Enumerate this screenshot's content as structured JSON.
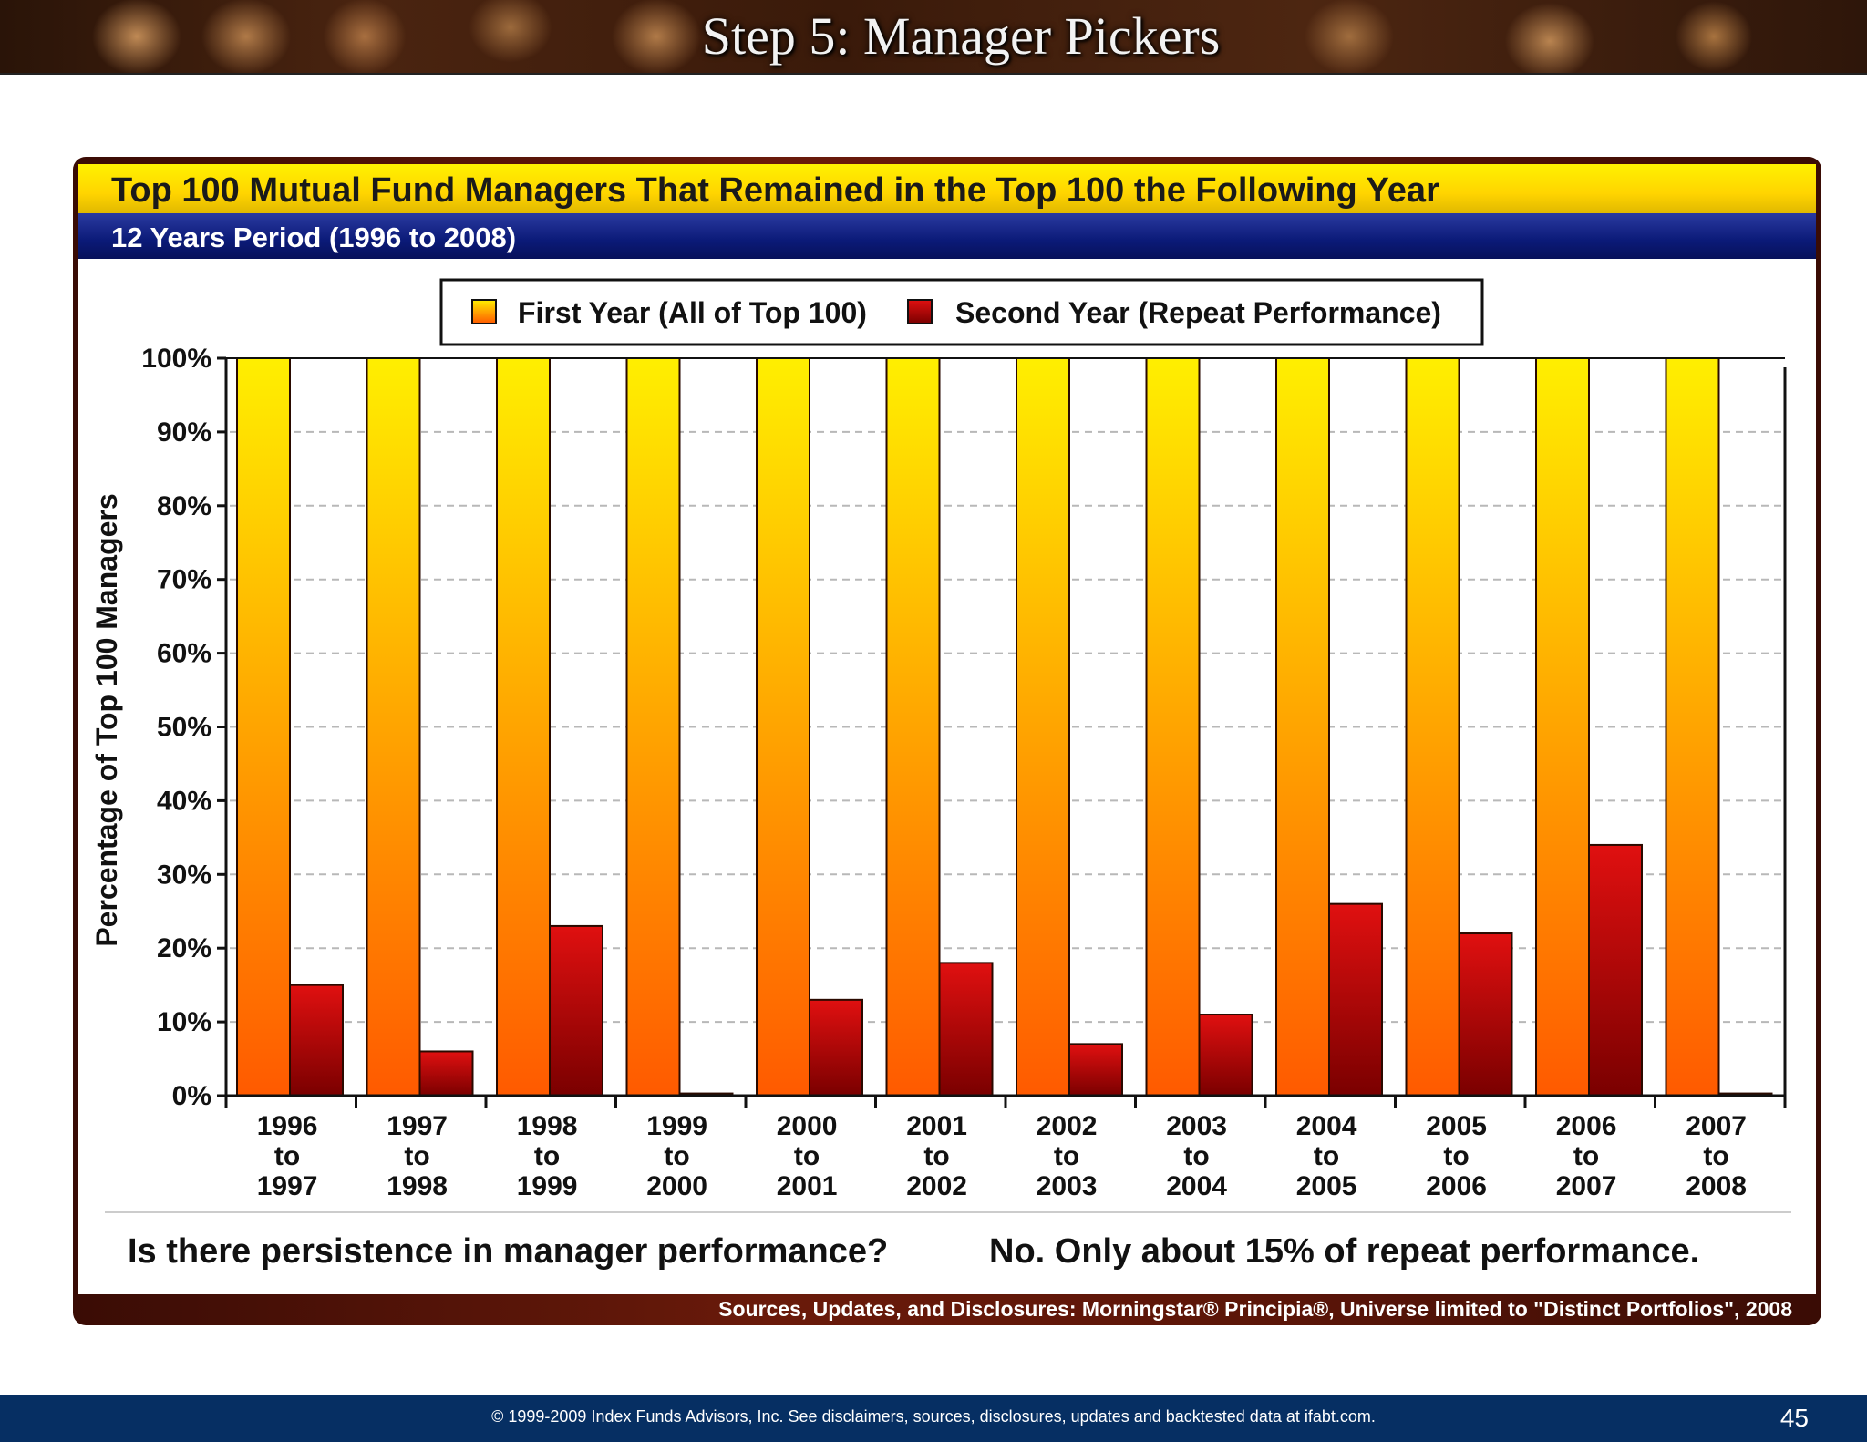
{
  "header": {
    "title": "Step 5: Manager Pickers"
  },
  "panel": {
    "title": "Top 100 Mutual Fund Managers That Remained in the Top 100 the Following Year",
    "subtitle": "12 Years Period  (1996 to 2008)",
    "source": "Sources, Updates, and Disclosures: Morningstar® Principia®, Universe limited to \"Distinct Portfolios\", 2008",
    "caption_question": "Is there persistence in manager performance?",
    "caption_answer": "No.  Only about 15% of repeat performance."
  },
  "colors": {
    "first_top": "#ffef00",
    "first_bottom": "#ff5a00",
    "second_top": "#e01010",
    "second_bottom": "#7a0000"
  },
  "chart_data": {
    "type": "bar",
    "title": "Top 100 Mutual Fund Managers That Remained in the Top 100 the Following Year",
    "ylabel": "Percentage of Top 100 Managers",
    "xlabel": "",
    "ylim": [
      0,
      100
    ],
    "yticks": [
      "0%",
      "10%",
      "20%",
      "30%",
      "40%",
      "50%",
      "60%",
      "70%",
      "80%",
      "90%",
      "100%"
    ],
    "grid": true,
    "legend_position": "top-center",
    "categories": [
      [
        "1996",
        "to",
        "1997"
      ],
      [
        "1997",
        "to",
        "1998"
      ],
      [
        "1998",
        "to",
        "1999"
      ],
      [
        "1999",
        "to",
        "2000"
      ],
      [
        "2000",
        "to",
        "2001"
      ],
      [
        "2001",
        "to",
        "2002"
      ],
      [
        "2002",
        "to",
        "2003"
      ],
      [
        "2003",
        "to",
        "2004"
      ],
      [
        "2004",
        "to",
        "2005"
      ],
      [
        "2005",
        "to",
        "2006"
      ],
      [
        "2006",
        "to",
        "2007"
      ],
      [
        "2007",
        "to",
        "2008"
      ]
    ],
    "series": [
      {
        "name": "First Year (All of Top 100)",
        "values": [
          100,
          100,
          100,
          100,
          100,
          100,
          100,
          100,
          100,
          100,
          100,
          100
        ]
      },
      {
        "name": "Second Year (Repeat Performance)",
        "values": [
          15,
          6,
          23,
          0.3,
          13,
          18,
          7,
          11,
          26,
          22,
          34,
          0.3
        ]
      }
    ]
  },
  "footer": {
    "copyright": "© 1999-2009 Index Funds Advisors, Inc. See disclaimers, sources, disclosures, updates and backtested data at ifabt.com.",
    "page_number": "45"
  }
}
